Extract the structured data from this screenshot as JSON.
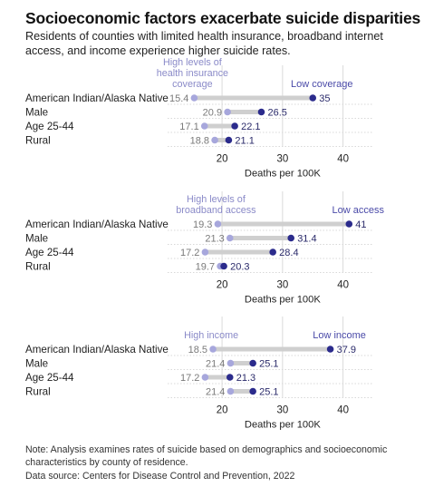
{
  "title": "Socioeconomic factors exacerbate suicide disparities",
  "subtitle": "Residents of counties with limited health insurance, broadband internet access, and income experience higher suicide rates.",
  "note": "Note: Analysis examines rates of suicide based on demographics and socioeconomic characteristics by county of residence.",
  "source": "Data source: Centers for Disease Control and Prevention, 2022",
  "colors": {
    "low_dot": "#2b2b8c",
    "high_dot": "#a7a7dc",
    "bar": "#cfcfcf",
    "grid": "#dadada",
    "label_purple": "#4a4aa8",
    "high_label": "#8a8ac8"
  },
  "chart_data": [
    {
      "type": "dumbbell",
      "high_label": "High levels of health insurance coverage",
      "low_label": "Low coverage",
      "xlabel": "Deaths per 100K",
      "xticks": [
        20,
        30,
        40
      ],
      "xlim": [
        11,
        45
      ],
      "categories": [
        "American Indian/Alaska Native",
        "Male",
        "Age 25-44",
        "Rural"
      ],
      "series": [
        {
          "name": "High levels of health insurance coverage",
          "values": [
            15.4,
            20.9,
            17.1,
            18.8
          ]
        },
        {
          "name": "Low coverage",
          "values": [
            35,
            26.5,
            22.1,
            21.1
          ]
        }
      ]
    },
    {
      "type": "dumbbell",
      "high_label": "High levels of broadband access",
      "low_label": "Low access",
      "xlabel": "Deaths per 100K",
      "xticks": [
        20,
        30,
        40
      ],
      "xlim": [
        11,
        45
      ],
      "categories": [
        "American Indian/Alaska Native",
        "Male",
        "Age 25-44",
        "Rural"
      ],
      "series": [
        {
          "name": "High levels of broadband access",
          "values": [
            19.3,
            21.3,
            17.2,
            19.7
          ]
        },
        {
          "name": "Low access",
          "values": [
            41,
            31.4,
            28.4,
            20.3
          ]
        }
      ]
    },
    {
      "type": "dumbbell",
      "high_label": "High income",
      "low_label": "Low income",
      "xlabel": "Deaths per 100K",
      "xticks": [
        20,
        30,
        40
      ],
      "xlim": [
        11,
        45
      ],
      "categories": [
        "American Indian/Alaska Native",
        "Male",
        "Age 25-44",
        "Rural"
      ],
      "series": [
        {
          "name": "High income",
          "values": [
            18.5,
            21.4,
            17.2,
            21.4
          ]
        },
        {
          "name": "Low income",
          "values": [
            37.9,
            25.1,
            21.3,
            25.1
          ]
        }
      ]
    }
  ]
}
